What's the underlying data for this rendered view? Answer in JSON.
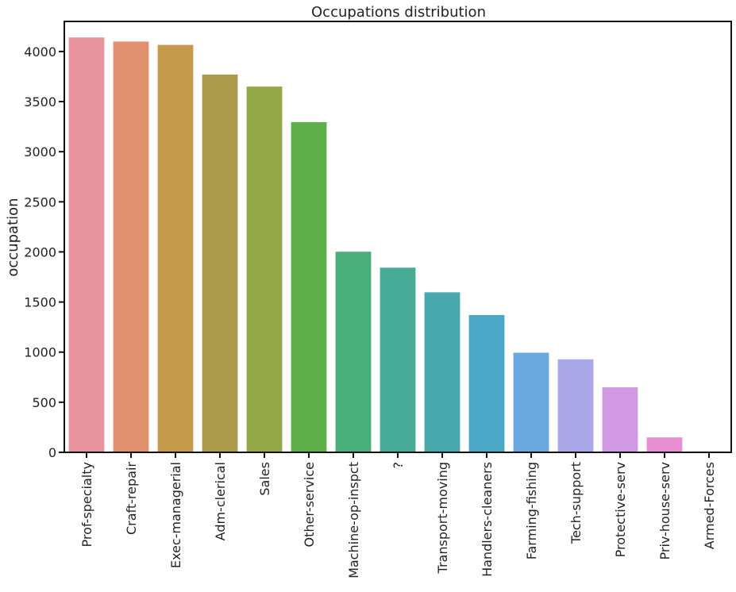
{
  "chart_data": {
    "type": "bar",
    "title": "Occupations distribution",
    "xlabel": "",
    "ylabel": "occupation",
    "ylim": [
      0,
      4300
    ],
    "yticks": [
      0,
      500,
      1000,
      1500,
      2000,
      2500,
      3000,
      3500,
      4000
    ],
    "categories": [
      "Prof-specialty",
      "Craft-repair",
      "Exec-managerial",
      "Adm-clerical",
      "Sales",
      "Other-service",
      "Machine-op-inspct",
      "?",
      "Transport-moving",
      "Handlers-cleaners",
      "Farming-fishing",
      "Tech-support",
      "Protective-serv",
      "Priv-house-serv",
      "Armed-Forces"
    ],
    "values": [
      4140,
      4099,
      4066,
      3770,
      3650,
      3295,
      2002,
      1843,
      1597,
      1370,
      994,
      928,
      649,
      149,
      9
    ],
    "colors": [
      "#e8939d",
      "#e08f6f",
      "#c69a4d",
      "#ab9a49",
      "#94a847",
      "#5eae49",
      "#4aae79",
      "#48ab97",
      "#48a8ab",
      "#4aa8c6",
      "#6aa9e0",
      "#aaa8e8",
      "#d199e3",
      "#e88fd2",
      "#e890b3"
    ],
    "grid": false,
    "legend": "none"
  }
}
